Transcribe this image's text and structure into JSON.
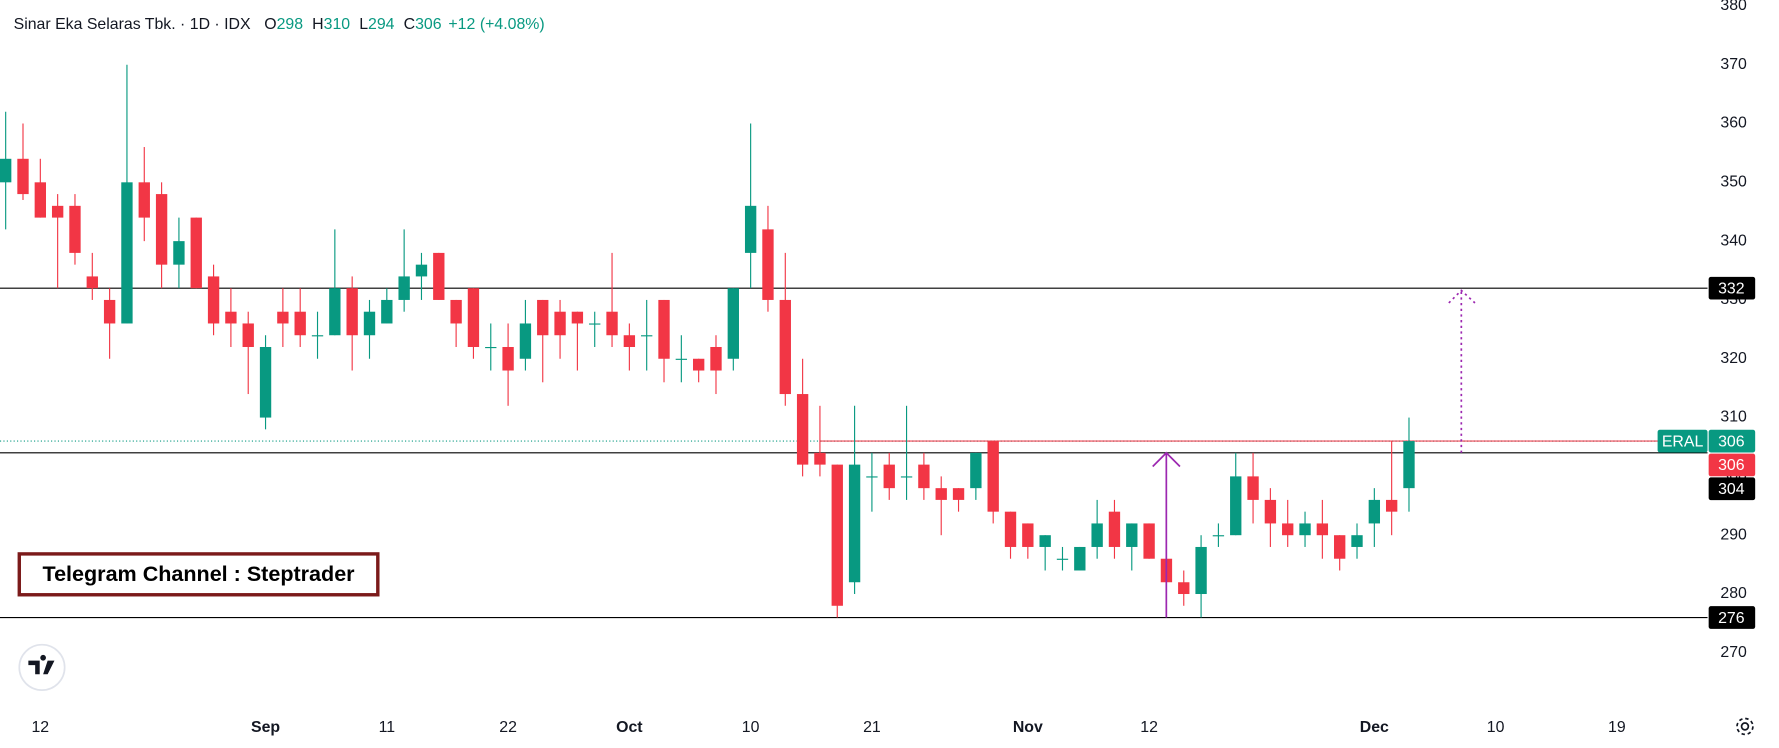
{
  "chart_data": {
    "type": "candlestick",
    "title": "Sinar Eka Selaras Tbk. · 1D · IDX",
    "symbol": "ERAL",
    "legend_labels": [
      "O",
      "H",
      "L",
      "C"
    ],
    "change": {
      "value": 12,
      "label": "+12"
    },
    "change_percent": {
      "value": 4.08,
      "label": "(+4.08%)"
    },
    "categories": [
      null,
      null,
      "12",
      null,
      null,
      null,
      null,
      null,
      null,
      null,
      null,
      null,
      null,
      null,
      null,
      "Sep",
      null,
      null,
      null,
      null,
      null,
      null,
      "11",
      null,
      null,
      null,
      null,
      null,
      null,
      "22",
      null,
      null,
      null,
      null,
      null,
      null,
      "Oct",
      null,
      null,
      null,
      null,
      null,
      null,
      "10",
      null,
      null,
      null,
      null,
      null,
      null,
      "21",
      null,
      null,
      null,
      null,
      null,
      null,
      null,
      null,
      "Nov",
      null,
      null,
      null,
      null,
      null,
      null,
      "12",
      null,
      null,
      null,
      null,
      null,
      null,
      null,
      null,
      null,
      null,
      null,
      null,
      "Dec",
      null,
      null,
      null,
      null,
      null,
      null,
      "10",
      null,
      null,
      null,
      null,
      null,
      null,
      "19"
    ],
    "open": [
      350,
      354,
      350,
      346,
      346,
      334,
      330,
      326,
      350,
      348,
      336,
      344,
      334,
      328,
      326,
      310,
      328,
      328,
      324,
      324,
      332,
      324,
      326,
      330,
      334,
      338,
      330,
      332,
      322,
      322,
      320,
      330,
      328,
      328,
      326,
      328,
      324,
      324,
      330,
      320,
      320,
      322,
      320,
      338,
      342,
      330,
      314,
      304,
      302,
      282,
      300,
      302,
      300,
      302,
      298,
      298,
      298,
      306,
      294,
      292,
      288,
      286,
      284,
      288,
      294,
      288,
      292,
      286,
      282,
      280,
      290,
      290,
      300,
      296,
      292,
      290,
      292,
      290,
      288,
      292,
      296,
      298,
      null,
      null,
      null,
      null,
      null,
      null,
      null,
      null,
      null,
      null,
      null,
      null
    ],
    "high": [
      362,
      360,
      354,
      348,
      348,
      338,
      332,
      370,
      356,
      350,
      344,
      344,
      336,
      332,
      328,
      324,
      332,
      332,
      328,
      342,
      334,
      330,
      332,
      342,
      338,
      338,
      330,
      332,
      326,
      326,
      330,
      330,
      330,
      328,
      328,
      338,
      326,
      330,
      330,
      324,
      320,
      324,
      332,
      360,
      346,
      338,
      320,
      312,
      302,
      312,
      304,
      304,
      312,
      304,
      300,
      298,
      304,
      306,
      294,
      292,
      290,
      288,
      288,
      296,
      296,
      292,
      292,
      288,
      284,
      290,
      292,
      304,
      304,
      298,
      296,
      294,
      296,
      290,
      292,
      298,
      306,
      310,
      null,
      null,
      null,
      null,
      null,
      null,
      null,
      null,
      null,
      null,
      null,
      null
    ],
    "low": [
      342,
      347,
      344,
      332,
      336,
      330,
      320,
      326,
      340,
      332,
      332,
      332,
      324,
      322,
      314,
      308,
      322,
      322,
      320,
      324,
      318,
      320,
      326,
      328,
      330,
      330,
      322,
      320,
      318,
      312,
      318,
      316,
      320,
      318,
      322,
      322,
      318,
      318,
      316,
      316,
      316,
      314,
      318,
      332,
      328,
      312,
      300,
      300,
      276,
      280,
      294,
      296,
      296,
      296,
      290,
      294,
      296,
      292,
      286,
      286,
      284,
      284,
      284,
      286,
      286,
      284,
      286,
      278,
      278,
      276,
      288,
      290,
      292,
      288,
      288,
      288,
      286,
      284,
      286,
      288,
      290,
      294,
      null,
      null,
      null,
      null,
      null,
      null,
      null,
      null,
      null,
      null,
      null,
      null
    ],
    "close": [
      354,
      348,
      344,
      344,
      338,
      332,
      326,
      350,
      344,
      336,
      340,
      332,
      326,
      326,
      322,
      322,
      326,
      324,
      324,
      332,
      324,
      328,
      330,
      334,
      336,
      330,
      326,
      322,
      322,
      318,
      326,
      324,
      324,
      326,
      326,
      324,
      322,
      324,
      320,
      320,
      318,
      318,
      332,
      346,
      330,
      314,
      302,
      302,
      278,
      302,
      300,
      298,
      300,
      298,
      296,
      296,
      304,
      294,
      288,
      288,
      290,
      286,
      288,
      292,
      288,
      292,
      286,
      282,
      280,
      288,
      290,
      300,
      296,
      292,
      290,
      292,
      290,
      286,
      290,
      296,
      294,
      306,
      null,
      null,
      null,
      null,
      null,
      null,
      null,
      null,
      null,
      null,
      null,
      null
    ],
    "up_color": "#089981",
    "down_color": "#f23645",
    "ylim": [
      259.8,
      381
    ],
    "yticks": [
      270,
      280,
      290,
      300,
      310,
      320,
      330,
      340,
      350,
      360,
      370,
      380
    ],
    "levels": [
      {
        "value": 332,
        "color": "#000000"
      },
      {
        "value": 304,
        "color": "#000000"
      },
      {
        "value": 276,
        "color": "#000000"
      }
    ],
    "ray": {
      "value": 306,
      "color": "#f23645"
    },
    "watermark": "Telegram Channel : Steptrader",
    "annotation_color": "#9c27b0"
  }
}
